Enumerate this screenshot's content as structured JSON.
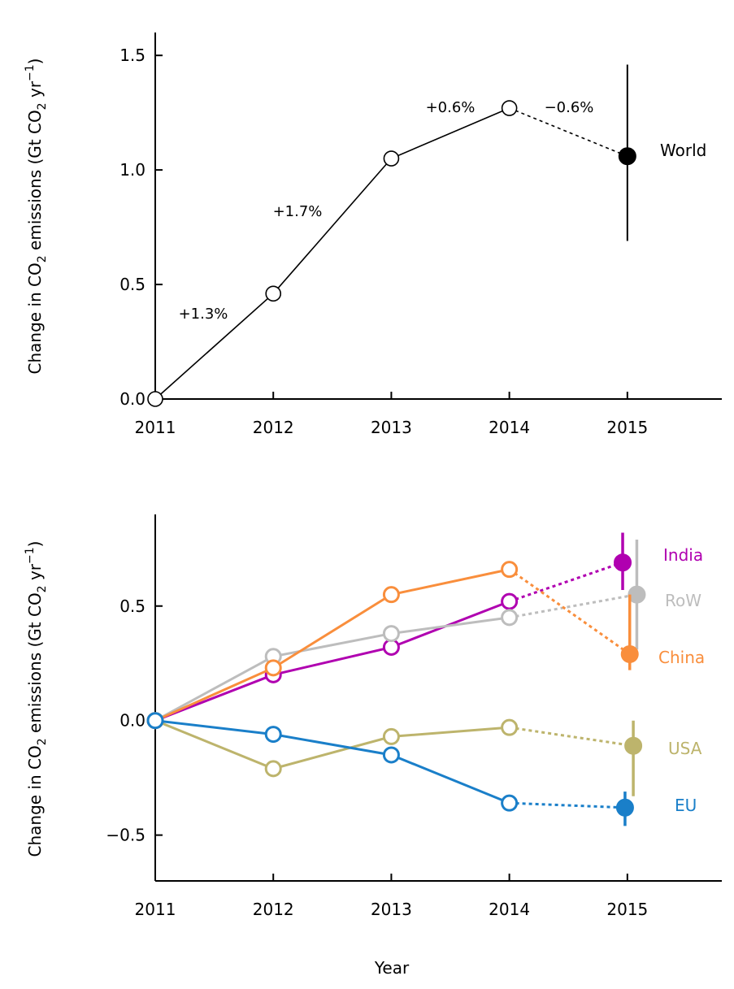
{
  "chart_data": [
    {
      "type": "line",
      "ylabel": "Change in CO2 emissions (Gt CO2 yr−1)",
      "xlabel": "",
      "x_ticks": [
        "2011",
        "2012",
        "2013",
        "2014",
        "2015"
      ],
      "y_ticks": [
        "0.0",
        "0.5",
        "1.0",
        "1.5"
      ],
      "xlim": [
        2011,
        2015.8
      ],
      "ylim": [
        0,
        1.6
      ],
      "grid": false,
      "series": [
        {
          "name": "World",
          "color": "#000000",
          "x": [
            2011,
            2012,
            2013,
            2014
          ],
          "values": [
            0.0,
            0.46,
            1.05,
            1.27
          ],
          "projection": {
            "x": 2015,
            "value": 1.06,
            "err_low": 0.69,
            "err_high": 1.46
          }
        }
      ],
      "annotations": [
        "+1.3%",
        "+1.7%",
        "+0.6%",
        "−0.6%"
      ]
    },
    {
      "type": "line",
      "ylabel": "Change in CO2 emissions (Gt CO2 yr−1)",
      "xlabel": "Year",
      "x_ticks": [
        "2011",
        "2012",
        "2013",
        "2014",
        "2015"
      ],
      "y_ticks": [
        "−0.5",
        "0.0",
        "0.5"
      ],
      "xlim": [
        2011,
        2015.8
      ],
      "ylim": [
        -0.7,
        0.9
      ],
      "grid": false,
      "series": [
        {
          "name": "India",
          "color": "#b000b0",
          "x": [
            2011,
            2012,
            2013,
            2014
          ],
          "values": [
            0.0,
            0.2,
            0.32,
            0.52
          ],
          "projection": {
            "x": 2014.96,
            "value": 0.69,
            "err_low": 0.57,
            "err_high": 0.82
          }
        },
        {
          "name": "RoW",
          "color": "#bdbdbd",
          "x": [
            2011,
            2012,
            2013,
            2014
          ],
          "values": [
            0.0,
            0.28,
            0.38,
            0.45
          ],
          "projection": {
            "x": 2015.08,
            "value": 0.55,
            "err_low": 0.31,
            "err_high": 0.79
          }
        },
        {
          "name": "China",
          "color": "#f98e3c",
          "x": [
            2011,
            2012,
            2013,
            2014
          ],
          "values": [
            0.0,
            0.23,
            0.55,
            0.66
          ],
          "projection": {
            "x": 2015.02,
            "value": 0.29,
            "err_low": 0.22,
            "err_high": 0.55
          }
        },
        {
          "name": "USA",
          "color": "#bdb46c",
          "x": [
            2011,
            2012,
            2013,
            2014
          ],
          "values": [
            0.0,
            -0.21,
            -0.07,
            -0.03
          ],
          "projection": {
            "x": 2015.05,
            "value": -0.11,
            "err_low": -0.33,
            "err_high": 0.0
          }
        },
        {
          "name": "EU",
          "color": "#1a7fc9",
          "x": [
            2011,
            2012,
            2013,
            2014
          ],
          "values": [
            0.0,
            -0.06,
            -0.15,
            -0.36
          ],
          "projection": {
            "x": 2014.98,
            "value": -0.38,
            "err_low": -0.46,
            "err_high": -0.31
          }
        }
      ]
    }
  ]
}
